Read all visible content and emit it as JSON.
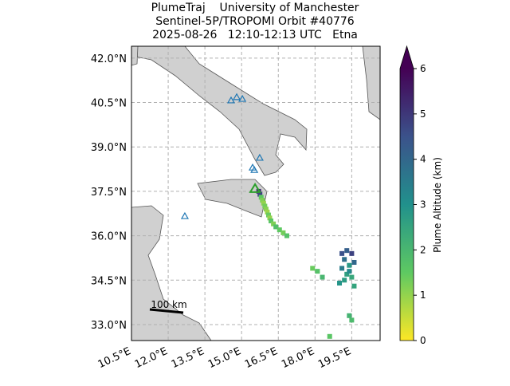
{
  "chart_data": {
    "type": "scatter",
    "title": [
      "PlumeTraj    University of Manchester",
      "Sentinel-5P/TROPOMI Orbit #40776",
      "2025-08-26   12:10-12:13 UTC   Etna"
    ],
    "xlim": [
      10.5,
      20.66
    ],
    "ylim": [
      32.46,
      42.4
    ],
    "xticks": [
      {
        "value": 10.5,
        "label": "10.5°E"
      },
      {
        "value": 12.0,
        "label": "12.0°E"
      },
      {
        "value": 13.5,
        "label": "13.5°E"
      },
      {
        "value": 15.0,
        "label": "15.0°E"
      },
      {
        "value": 16.5,
        "label": "16.5°E"
      },
      {
        "value": 18.0,
        "label": "18.0°E"
      },
      {
        "value": 19.5,
        "label": "19.5°E"
      }
    ],
    "yticks": [
      {
        "value": 33.0,
        "label": "33.0°N"
      },
      {
        "value": 34.5,
        "label": "34.5°N"
      },
      {
        "value": 36.0,
        "label": "36.0°N"
      },
      {
        "value": 37.5,
        "label": "37.5°N"
      },
      {
        "value": 39.0,
        "label": "39.0°N"
      },
      {
        "value": 40.5,
        "label": "40.5°N"
      },
      {
        "value": 42.0,
        "label": "42.0°N"
      }
    ],
    "grid": true,
    "plume": {
      "x": [
        15.7,
        15.75,
        15.8,
        15.85,
        15.9,
        15.95,
        16.0,
        16.05,
        16.1,
        16.15,
        16.2,
        16.3,
        16.4,
        16.55,
        16.7,
        16.85,
        19.1,
        19.3,
        19.5,
        19.2,
        19.6,
        19.4,
        19.1,
        19.3,
        19.5,
        19.2,
        19.0,
        19.6,
        19.4,
        17.9,
        18.1,
        18.3,
        19.4,
        19.5,
        18.6
      ],
      "y": [
        37.5,
        37.4,
        37.3,
        37.2,
        37.1,
        37.0,
        36.9,
        36.8,
        36.7,
        36.6,
        36.5,
        36.4,
        36.3,
        36.2,
        36.1,
        36.0,
        35.4,
        35.5,
        35.4,
        35.2,
        35.1,
        35.0,
        34.9,
        34.7,
        34.6,
        34.5,
        34.4,
        34.3,
        34.8,
        34.9,
        34.8,
        34.6,
        33.3,
        33.15,
        32.6
      ],
      "values": [
        5.2,
        4.8,
        1.5,
        1.2,
        1.0,
        1.3,
        1.1,
        0.9,
        1.4,
        1.0,
        1.6,
        1.2,
        1.8,
        1.5,
        1.3,
        1.7,
        4.5,
        4.2,
        4.8,
        3.8,
        4.0,
        2.8,
        3.5,
        2.6,
        2.4,
        2.7,
        2.9,
        2.5,
        3.2,
        1.4,
        1.7,
        2.0,
        2.1,
        1.9,
        1.6
      ]
    },
    "volcanoes": {
      "color": "#1f77b4",
      "x": [
        14.57,
        14.8,
        15.03,
        15.45,
        15.52,
        15.74,
        12.68
      ],
      "y": [
        40.57,
        40.68,
        40.62,
        38.3,
        38.22,
        38.63,
        36.66
      ]
    },
    "target": {
      "color": "#2ca02c",
      "x": 15.55,
      "y": 37.58
    },
    "colormap": [
      "#fde725",
      "#5ec962",
      "#21918c",
      "#3b528b",
      "#440154"
    ],
    "clim": [
      0,
      6
    ],
    "cticks": [
      0,
      1,
      2,
      3,
      4,
      5,
      6
    ],
    "colorbar_label": "Plume Altitude (km)",
    "scale_bar": "100 km"
  }
}
